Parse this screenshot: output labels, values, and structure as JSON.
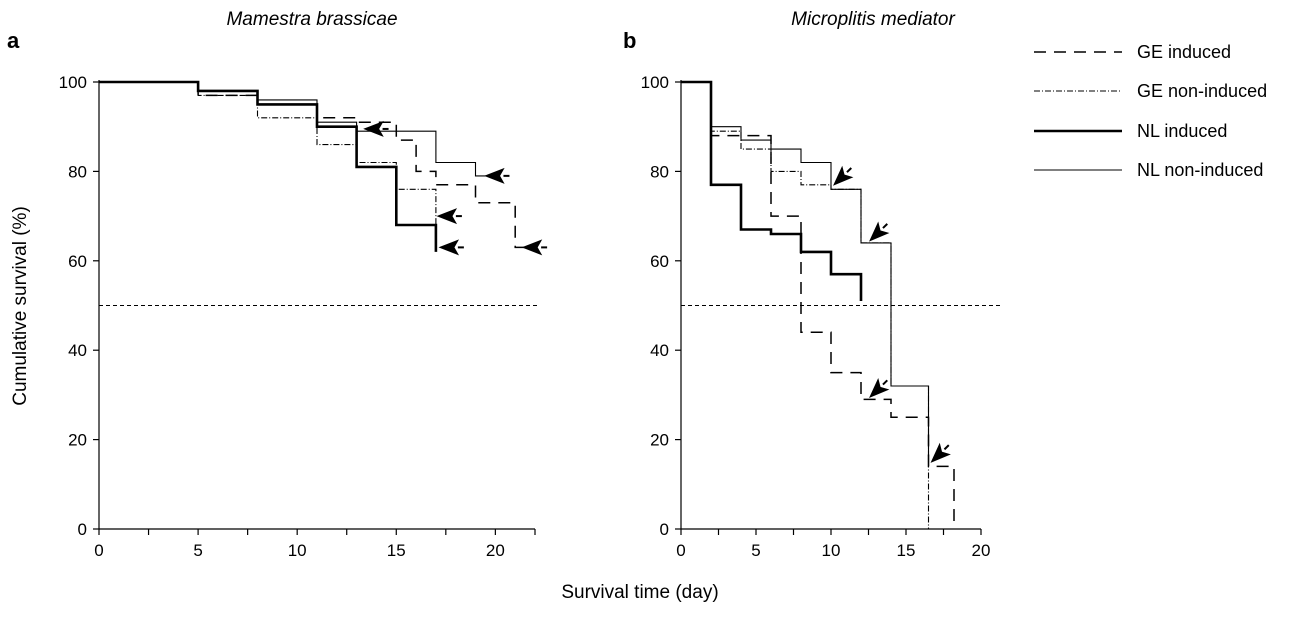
{
  "figure": {
    "xlabel": "Survival time (day)",
    "ylabel": "Cumulative survival (%)"
  },
  "legend": [
    {
      "name": "GE induced",
      "style": "dashed-long"
    },
    {
      "name": "GE non-induced",
      "style": "dash-dot"
    },
    {
      "name": "NL induced",
      "style": "solid-thick"
    },
    {
      "name": "NL non-induced",
      "style": "solid-thin"
    }
  ],
  "chart_data": [
    {
      "type": "line",
      "panel_label": "a",
      "title": "Mamestra brassicae",
      "xlim": [
        0,
        22
      ],
      "ylim": [
        0,
        100
      ],
      "x_ticks": [
        0,
        5,
        10,
        15,
        20
      ],
      "x_minor_ticks": [
        0,
        2.5,
        5,
        7.5,
        10,
        12.5,
        15,
        17.5,
        20,
        22
      ],
      "y_ticks": [
        0,
        20,
        40,
        60,
        80,
        100
      ],
      "reference_line": 50,
      "series": [
        {
          "name": "GE induced",
          "style": "dashed-long",
          "points": [
            [
              0,
              100
            ],
            [
              5,
              100
            ],
            [
              5,
              97
            ],
            [
              8,
              97
            ],
            [
              8,
              95
            ],
            [
              11,
              95
            ],
            [
              11,
              92
            ],
            [
              13,
              92
            ],
            [
              13,
              91
            ],
            [
              15,
              91
            ],
            [
              15,
              87
            ],
            [
              16,
              87
            ],
            [
              16,
              80
            ],
            [
              17,
              80
            ],
            [
              17,
              77
            ],
            [
              19,
              77
            ],
            [
              19,
              73
            ],
            [
              21,
              73
            ],
            [
              21,
              63
            ],
            [
              21.6,
              63
            ]
          ]
        },
        {
          "name": "GE non-induced",
          "style": "dash-dot",
          "points": [
            [
              0,
              100
            ],
            [
              5,
              100
            ],
            [
              5,
              97
            ],
            [
              8,
              97
            ],
            [
              8,
              92
            ],
            [
              11,
              92
            ],
            [
              11,
              86
            ],
            [
              13,
              86
            ],
            [
              13,
              82
            ],
            [
              15,
              82
            ],
            [
              15,
              76
            ],
            [
              17,
              76
            ],
            [
              17,
              63
            ]
          ]
        },
        {
          "name": "NL induced",
          "style": "solid-thick",
          "points": [
            [
              0,
              100
            ],
            [
              5,
              100
            ],
            [
              5,
              98
            ],
            [
              8,
              98
            ],
            [
              8,
              95
            ],
            [
              11,
              95
            ],
            [
              11,
              90
            ],
            [
              13,
              90
            ],
            [
              13,
              81
            ],
            [
              15,
              81
            ],
            [
              15,
              68
            ],
            [
              17,
              68
            ],
            [
              17,
              62
            ]
          ]
        },
        {
          "name": "NL non-induced",
          "style": "solid-thin",
          "points": [
            [
              0,
              100
            ],
            [
              5,
              100
            ],
            [
              5,
              98
            ],
            [
              8,
              98
            ],
            [
              8,
              96
            ],
            [
              11,
              96
            ],
            [
              11,
              91
            ],
            [
              13,
              91
            ],
            [
              13,
              89
            ],
            [
              17,
              89
            ],
            [
              17,
              82
            ],
            [
              19,
              82
            ],
            [
              19,
              79
            ],
            [
              19.7,
              79
            ]
          ]
        }
      ],
      "arrows": [
        [
          13.4,
          89.5
        ],
        [
          19.5,
          79
        ],
        [
          17.1,
          70
        ],
        [
          17.2,
          63
        ],
        [
          21.4,
          63
        ]
      ]
    },
    {
      "type": "line",
      "panel_label": "b",
      "title": "Microplitis mediator",
      "xlim": [
        0,
        20
      ],
      "ylim": [
        0,
        100
      ],
      "x_ticks": [
        0,
        5,
        10,
        15,
        20
      ],
      "x_minor_ticks": [
        0,
        2.5,
        5,
        7.5,
        10,
        12.5,
        15,
        17.5,
        20
      ],
      "y_ticks": [
        0,
        20,
        40,
        60,
        80,
        100
      ],
      "reference_line": 50,
      "series": [
        {
          "name": "GE induced",
          "style": "dashed-long",
          "points": [
            [
              0,
              100
            ],
            [
              2,
              100
            ],
            [
              2,
              88
            ],
            [
              6,
              88
            ],
            [
              6,
              70
            ],
            [
              8,
              70
            ],
            [
              8,
              44
            ],
            [
              10,
              44
            ],
            [
              10,
              35
            ],
            [
              12,
              35
            ],
            [
              12,
              29
            ],
            [
              14,
              29
            ],
            [
              14,
              25
            ],
            [
              16.5,
              25
            ],
            [
              16.5,
              14
            ],
            [
              18.2,
              14
            ],
            [
              18.2,
              0
            ]
          ]
        },
        {
          "name": "GE non-induced",
          "style": "dash-dot",
          "points": [
            [
              0,
              100
            ],
            [
              2,
              100
            ],
            [
              2,
              89
            ],
            [
              4,
              89
            ],
            [
              4,
              85
            ],
            [
              6,
              85
            ],
            [
              6,
              80
            ],
            [
              8,
              80
            ],
            [
              8,
              77
            ],
            [
              10,
              77
            ],
            [
              10,
              76
            ],
            [
              12,
              76
            ],
            [
              12,
              64
            ],
            [
              14,
              64
            ],
            [
              14,
              32
            ],
            [
              16.5,
              32
            ],
            [
              16.5,
              0
            ]
          ]
        },
        {
          "name": "NL induced",
          "style": "solid-thick",
          "points": [
            [
              0,
              100
            ],
            [
              2,
              100
            ],
            [
              2,
              77
            ],
            [
              4,
              77
            ],
            [
              4,
              67
            ],
            [
              6,
              67
            ],
            [
              6,
              66
            ],
            [
              8,
              66
            ],
            [
              8,
              62
            ],
            [
              10,
              62
            ],
            [
              10,
              57
            ],
            [
              12,
              57
            ],
            [
              12,
              51
            ]
          ]
        },
        {
          "name": "NL non-induced",
          "style": "solid-thin",
          "points": [
            [
              0,
              100
            ],
            [
              2,
              100
            ],
            [
              2,
              90
            ],
            [
              4,
              90
            ],
            [
              4,
              87
            ],
            [
              6,
              87
            ],
            [
              6,
              85
            ],
            [
              8,
              85
            ],
            [
              8,
              82
            ],
            [
              10,
              82
            ],
            [
              10,
              76
            ],
            [
              12,
              76
            ],
            [
              12,
              64
            ],
            [
              14,
              64
            ],
            [
              14,
              32
            ],
            [
              16.5,
              32
            ],
            [
              16.5,
              15
            ]
          ]
        }
      ],
      "arrows": [
        [
          10.2,
          77
        ],
        [
          12.6,
          64.5
        ],
        [
          12.6,
          29.5
        ],
        [
          16.7,
          15
        ]
      ]
    }
  ]
}
